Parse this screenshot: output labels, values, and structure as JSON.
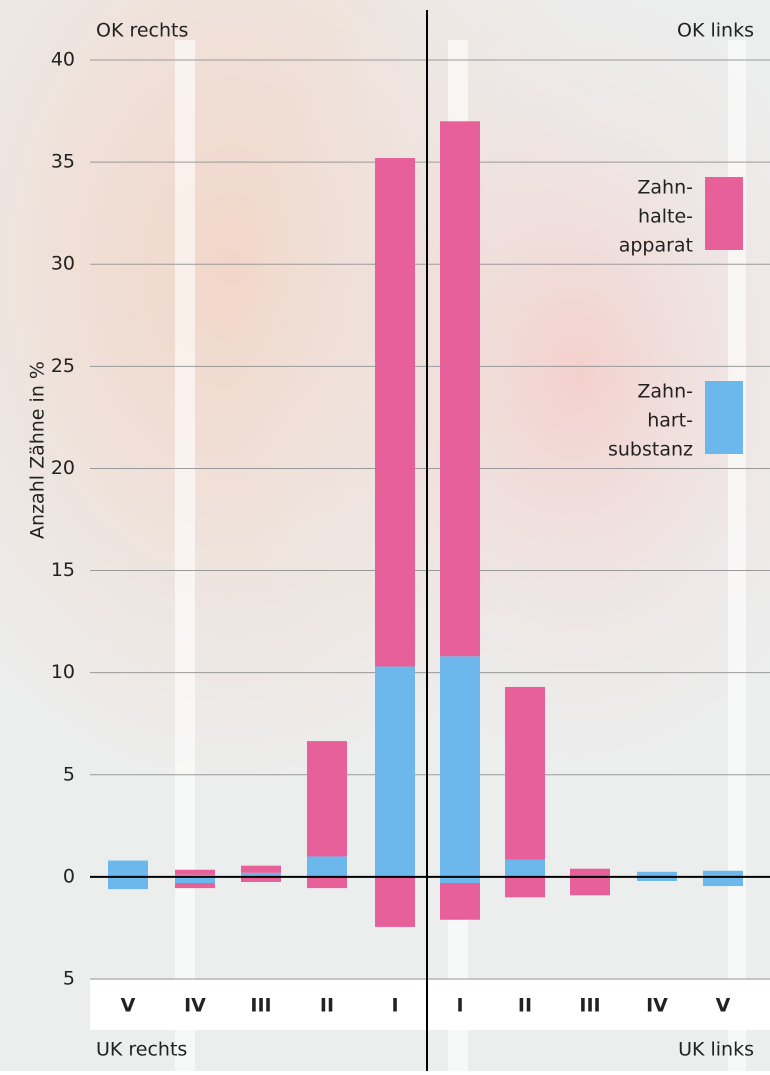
{
  "chart_data": {
    "type": "bar",
    "ylabel": "Anzahl Zähne in %",
    "corner_labels": [
      "OK rechts",
      "OK links",
      "UK rechts",
      "UK links"
    ],
    "categories": [
      "V",
      "IV",
      "III",
      "II",
      "I",
      "I",
      "II",
      "III",
      "IV",
      "V"
    ],
    "series": [
      {
        "name": [
          "Zahn-",
          "hart-",
          "substanz"
        ],
        "color": "#6cb8ec",
        "values": [
          0.8,
          0.1,
          0.2,
          1.0,
          10.3,
          10.8,
          0.85,
          0,
          0.25,
          0.3
        ],
        "lower": [
          -0.6,
          -0.3,
          0,
          0,
          0,
          -0.3,
          0,
          0,
          -0.2,
          -0.45
        ]
      },
      {
        "name": [
          "Zahn-",
          "halte-",
          "apparat"
        ],
        "color": "#e8609a",
        "values": [
          0,
          0.25,
          0.35,
          5.65,
          24.9,
          26.2,
          8.45,
          0.4,
          0,
          0
        ],
        "lower": [
          0,
          -0.25,
          -0.25,
          -0.55,
          -2.45,
          -1.8,
          -1.0,
          -0.9,
          0,
          0
        ]
      }
    ],
    "ylim": [
      -5,
      40
    ],
    "yticks": [
      {
        "value": -5,
        "label": "5"
      },
      0,
      5,
      10,
      15,
      20,
      25,
      30,
      35,
      40
    ],
    "grid": true
  }
}
